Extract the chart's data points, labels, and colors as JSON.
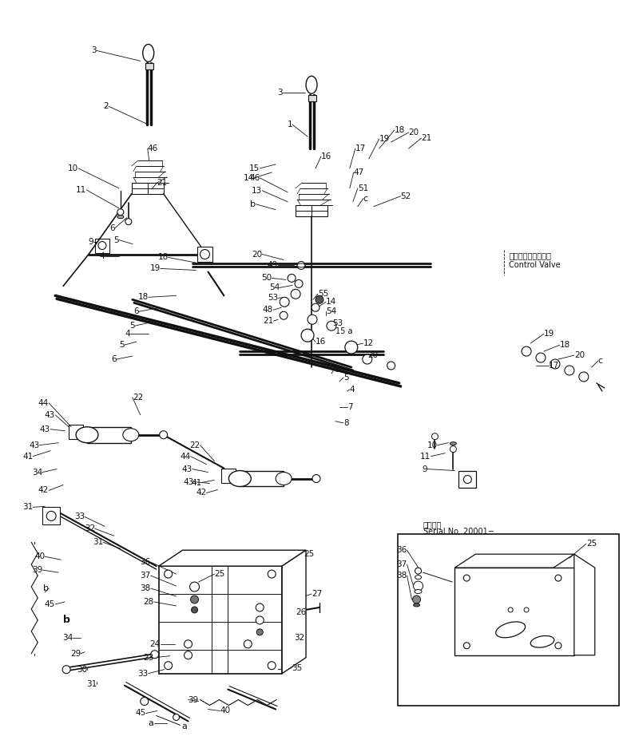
{
  "bg_color": "#ffffff",
  "line_color": "#111111",
  "text_color": "#111111",
  "fig_width": 7.9,
  "fig_height": 9.27,
  "dpi": 100,
  "control_valve_line1": "コントロールバルブ",
  "control_valve_line2": "Control Valve",
  "inset_label1": "適用号機",
  "inset_label2": "Serial No. 20001−"
}
